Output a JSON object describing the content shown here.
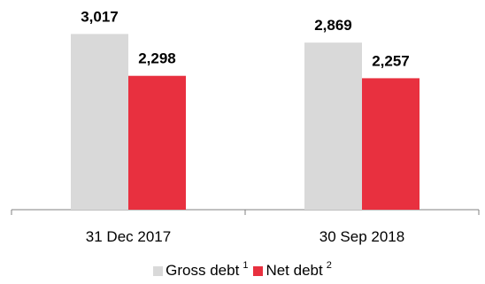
{
  "chart_data": {
    "type": "bar",
    "categories": [
      "31 Dec 2017",
      "30 Sep 2018"
    ],
    "series": [
      {
        "name": "Gross debt",
        "superscript": "1",
        "color": "#d9d9d9",
        "values": [
          3017,
          2869
        ],
        "labels": [
          "3,017",
          "2,869"
        ]
      },
      {
        "name": "Net debt",
        "superscript": "2",
        "color": "#e8303f",
        "values": [
          2298,
          2257
        ],
        "labels": [
          "2,298",
          "2,257"
        ]
      }
    ],
    "ylim": [
      0,
      3600
    ],
    "grid": false,
    "legend": "bottom-center"
  }
}
